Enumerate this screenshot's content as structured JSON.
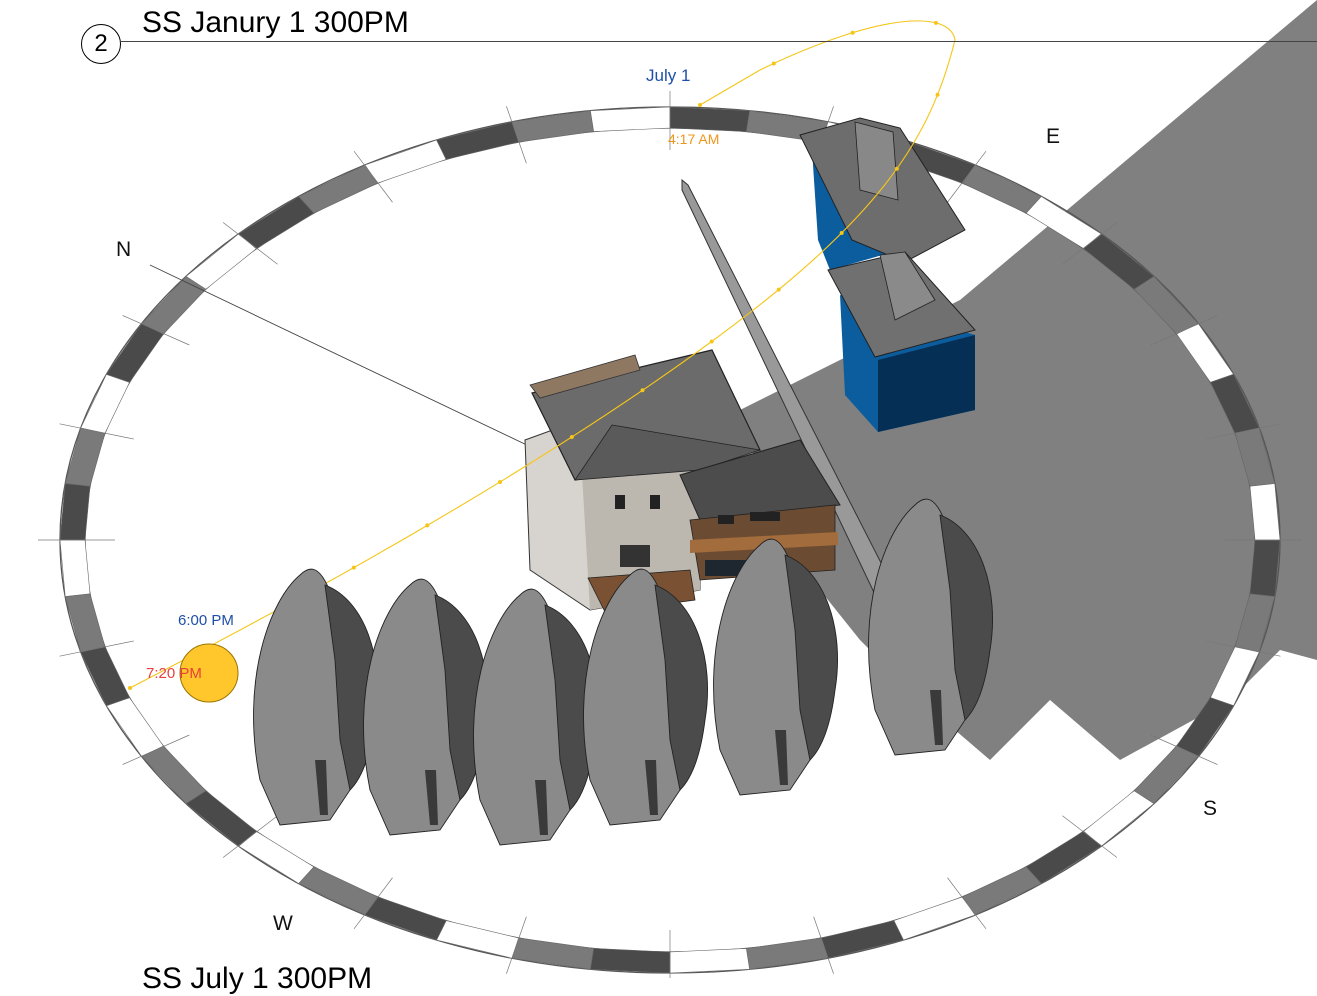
{
  "view": {
    "number": "2",
    "title": "SS Janury 1 300PM",
    "next_title": "SS July 1 300PM"
  },
  "compass": {
    "north": "N",
    "east": "E",
    "south": "S",
    "west": "W"
  },
  "sun_path": {
    "date_label": "July 1",
    "sunrise_label": "4:17 AM",
    "current_time_label": "6:00 PM",
    "sunset_label": "7:20 PM"
  },
  "colors": {
    "sun": "#FFC72C",
    "sun_path": "#F5C518",
    "date_label": "#1F4FA8",
    "sunrise_label": "#F0951B",
    "current_time_label": "#1F4FA8",
    "sunset_label": "#E8403C",
    "shadow": "#808080",
    "tree": "#8A8A8A",
    "tree_dark": "#4B4B4B",
    "neighbor_building": "#0B5D9E"
  }
}
